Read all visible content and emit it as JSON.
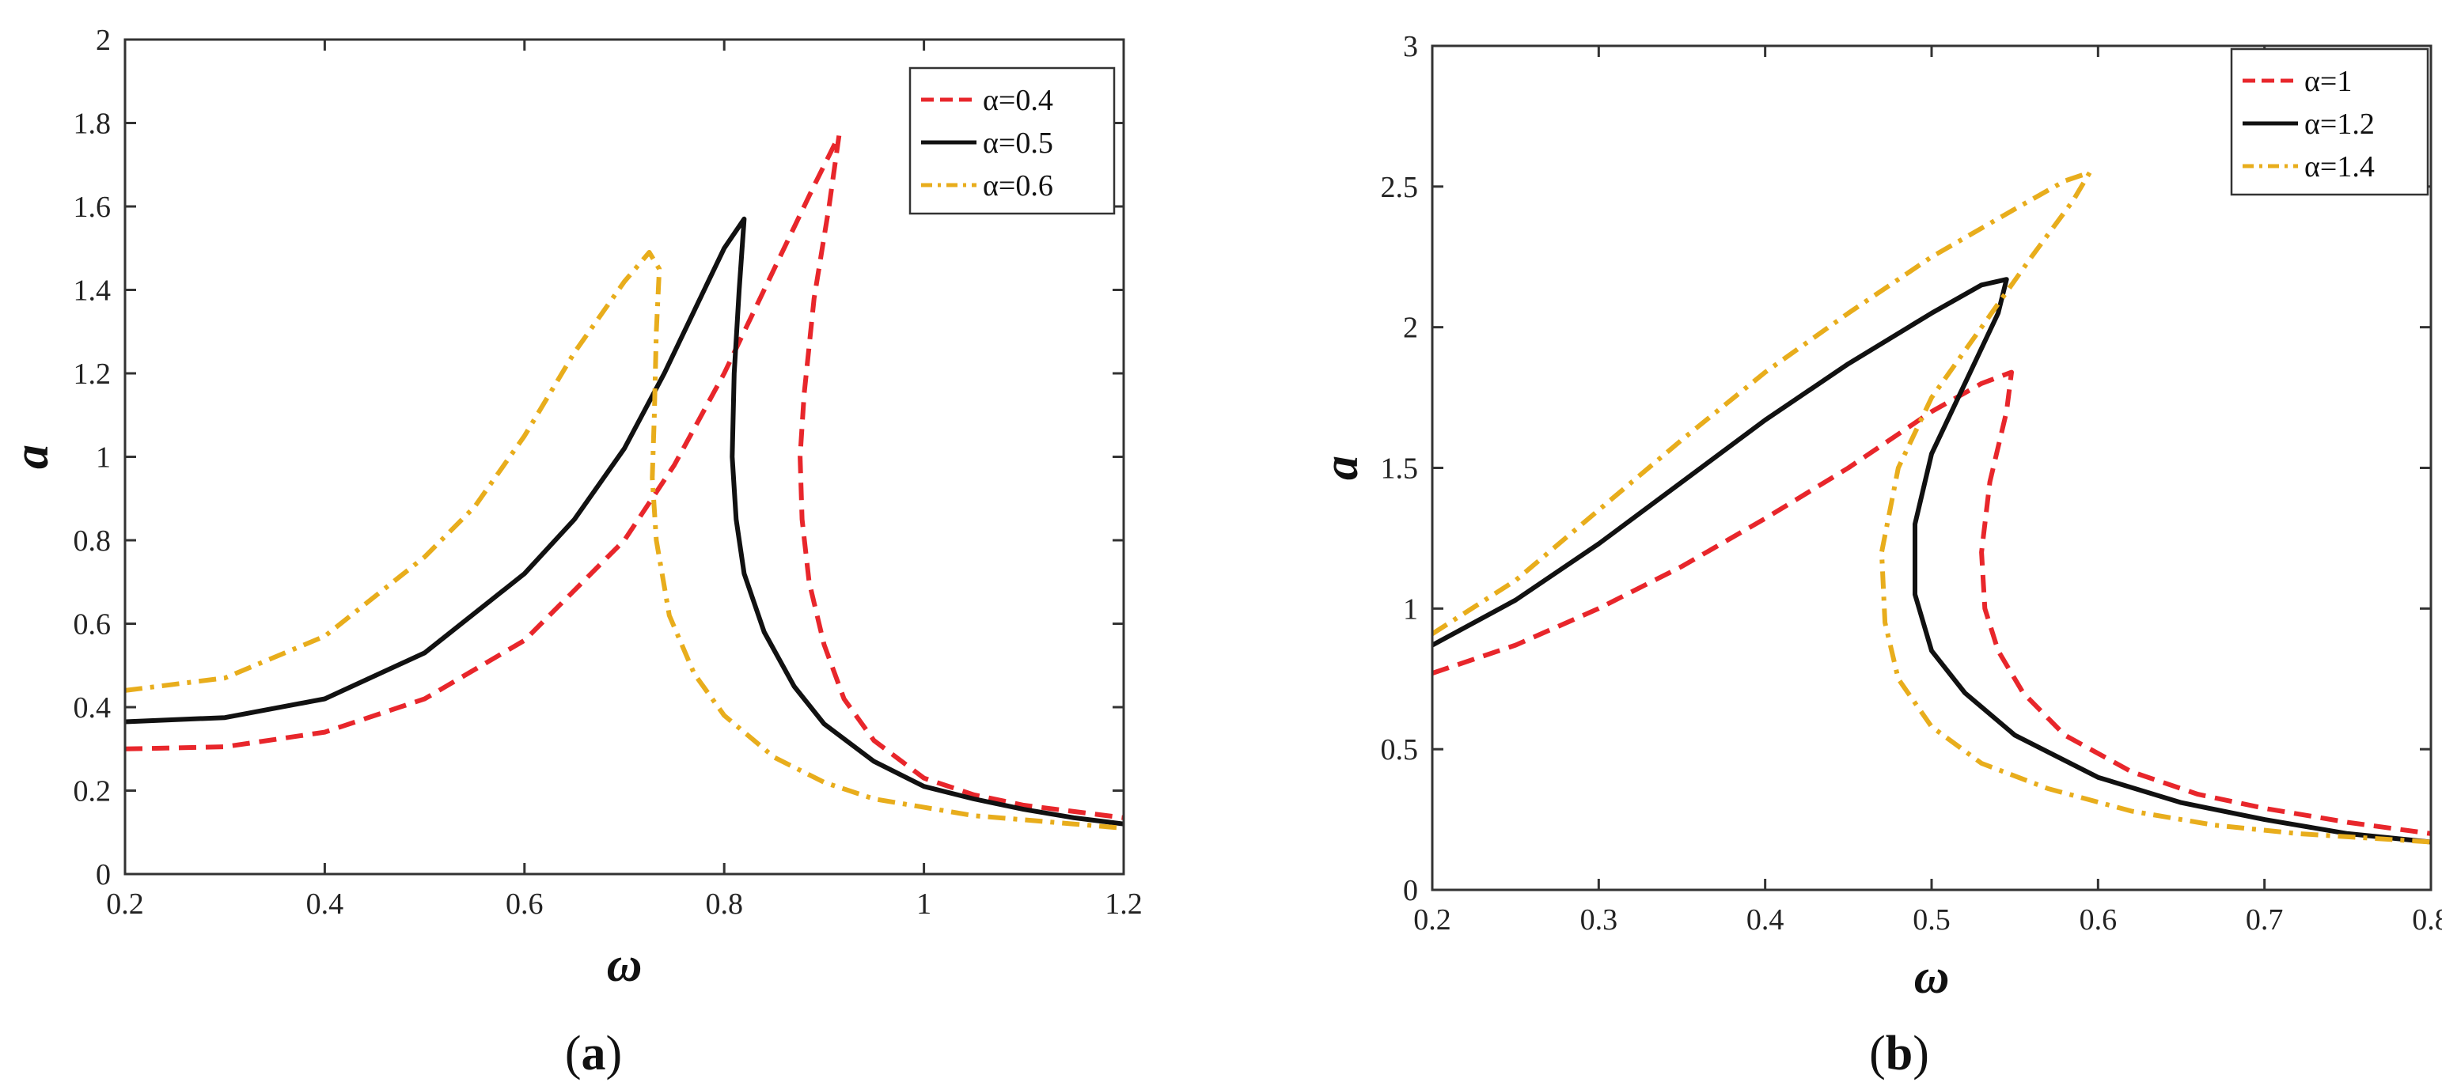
{
  "chart_data": [
    {
      "type": "line",
      "panel_label": "a",
      "xlabel": "ω",
      "ylabel": "a",
      "xlim": [
        0.2,
        1.2
      ],
      "ylim": [
        0,
        2
      ],
      "xticks": [
        0.2,
        0.4,
        0.6,
        0.8,
        1,
        1.2
      ],
      "yticks": [
        0,
        0.2,
        0.4,
        0.6,
        0.8,
        1,
        1.2,
        1.4,
        1.6,
        1.8,
        2
      ],
      "xtick_labels": [
        "0.2",
        "0.4",
        "0.6",
        "0.8",
        "1",
        "1.2"
      ],
      "ytick_labels": [
        "0",
        "0.2",
        "0.4",
        "0.6",
        "0.8",
        "1",
        "1.2",
        "1.4",
        "1.6",
        "1.8",
        "2"
      ],
      "legend_position": "top-right",
      "series": [
        {
          "name": "α=0.4",
          "color": "#e8262b",
          "dash": "dashed",
          "x": [
            0.2,
            0.3,
            0.4,
            0.5,
            0.6,
            0.7,
            0.75,
            0.8,
            0.85,
            0.89,
            0.915,
            0.905,
            0.89,
            0.88,
            0.876,
            0.878,
            0.885,
            0.9,
            0.92,
            0.95,
            1.0,
            1.05,
            1.1,
            1.15,
            1.2
          ],
          "y": [
            0.3,
            0.305,
            0.34,
            0.42,
            0.56,
            0.8,
            0.98,
            1.2,
            1.45,
            1.65,
            1.77,
            1.6,
            1.38,
            1.15,
            1.0,
            0.85,
            0.7,
            0.55,
            0.42,
            0.32,
            0.23,
            0.19,
            0.165,
            0.15,
            0.135
          ]
        },
        {
          "name": "α=0.5",
          "color": "#111111",
          "dash": "solid",
          "x": [
            0.2,
            0.3,
            0.4,
            0.5,
            0.6,
            0.65,
            0.7,
            0.74,
            0.77,
            0.8,
            0.82,
            0.815,
            0.81,
            0.808,
            0.812,
            0.82,
            0.84,
            0.87,
            0.9,
            0.95,
            1.0,
            1.05,
            1.1,
            1.15,
            1.2
          ],
          "y": [
            0.365,
            0.375,
            0.42,
            0.53,
            0.72,
            0.85,
            1.02,
            1.2,
            1.35,
            1.5,
            1.57,
            1.4,
            1.2,
            1.0,
            0.85,
            0.72,
            0.58,
            0.45,
            0.36,
            0.27,
            0.21,
            0.18,
            0.155,
            0.135,
            0.12
          ]
        },
        {
          "name": "α=0.6",
          "color": "#e8ad1c",
          "dash": "dashdot",
          "x": [
            0.2,
            0.3,
            0.4,
            0.5,
            0.55,
            0.6,
            0.65,
            0.7,
            0.725,
            0.735,
            0.732,
            0.73,
            0.728,
            0.732,
            0.745,
            0.77,
            0.8,
            0.85,
            0.9,
            0.95,
            1.0,
            1.05,
            1.1,
            1.15,
            1.2
          ],
          "y": [
            0.44,
            0.47,
            0.57,
            0.76,
            0.88,
            1.05,
            1.25,
            1.42,
            1.49,
            1.45,
            1.3,
            1.1,
            0.95,
            0.8,
            0.62,
            0.48,
            0.38,
            0.28,
            0.22,
            0.18,
            0.16,
            0.14,
            0.13,
            0.12,
            0.11
          ]
        }
      ]
    },
    {
      "type": "line",
      "panel_label": "b",
      "xlabel": "ω",
      "ylabel": "a",
      "xlim": [
        0.2,
        0.8
      ],
      "ylim": [
        0,
        3
      ],
      "xticks": [
        0.2,
        0.3,
        0.4,
        0.5,
        0.6,
        0.7,
        0.8
      ],
      "yticks": [
        0,
        0.5,
        1,
        1.5,
        2,
        2.5,
        3
      ],
      "xtick_labels": [
        "0.2",
        "0.3",
        "0.4",
        "0.5",
        "0.6",
        "0.7",
        "0.8"
      ],
      "ytick_labels": [
        "0",
        "0.5",
        "1",
        "1.5",
        "2",
        "2.5",
        "3"
      ],
      "legend_position": "top-right",
      "series": [
        {
          "name": "α=1",
          "color": "#e8262b",
          "dash": "dashed",
          "x": [
            0.2,
            0.25,
            0.3,
            0.35,
            0.4,
            0.45,
            0.5,
            0.53,
            0.548,
            0.545,
            0.535,
            0.53,
            0.532,
            0.54,
            0.555,
            0.58,
            0.62,
            0.66,
            0.7,
            0.75,
            0.8
          ],
          "y": [
            0.77,
            0.87,
            1.0,
            1.15,
            1.32,
            1.5,
            1.7,
            1.8,
            1.84,
            1.7,
            1.45,
            1.2,
            1.0,
            0.85,
            0.7,
            0.55,
            0.42,
            0.34,
            0.29,
            0.24,
            0.2
          ]
        },
        {
          "name": "α=1.2",
          "color": "#111111",
          "dash": "solid",
          "x": [
            0.2,
            0.25,
            0.3,
            0.35,
            0.4,
            0.45,
            0.5,
            0.53,
            0.545,
            0.54,
            0.52,
            0.5,
            0.49,
            0.49,
            0.5,
            0.52,
            0.55,
            0.6,
            0.65,
            0.7,
            0.75,
            0.8
          ],
          "y": [
            0.87,
            1.03,
            1.23,
            1.45,
            1.67,
            1.87,
            2.05,
            2.15,
            2.17,
            2.05,
            1.8,
            1.55,
            1.3,
            1.05,
            0.85,
            0.7,
            0.55,
            0.4,
            0.31,
            0.25,
            0.2,
            0.17
          ]
        },
        {
          "name": "α=1.4",
          "color": "#e8ad1c",
          "dash": "dashdot",
          "x": [
            0.2,
            0.25,
            0.3,
            0.35,
            0.4,
            0.45,
            0.5,
            0.55,
            0.58,
            0.595,
            0.585,
            0.56,
            0.53,
            0.5,
            0.48,
            0.47,
            0.472,
            0.48,
            0.5,
            0.53,
            0.57,
            0.62,
            0.67,
            0.72,
            0.8
          ],
          "y": [
            0.91,
            1.1,
            1.35,
            1.6,
            1.84,
            2.05,
            2.25,
            2.42,
            2.52,
            2.55,
            2.45,
            2.25,
            2.0,
            1.75,
            1.5,
            1.2,
            0.95,
            0.75,
            0.58,
            0.45,
            0.36,
            0.28,
            0.23,
            0.2,
            0.17
          ]
        }
      ]
    }
  ]
}
